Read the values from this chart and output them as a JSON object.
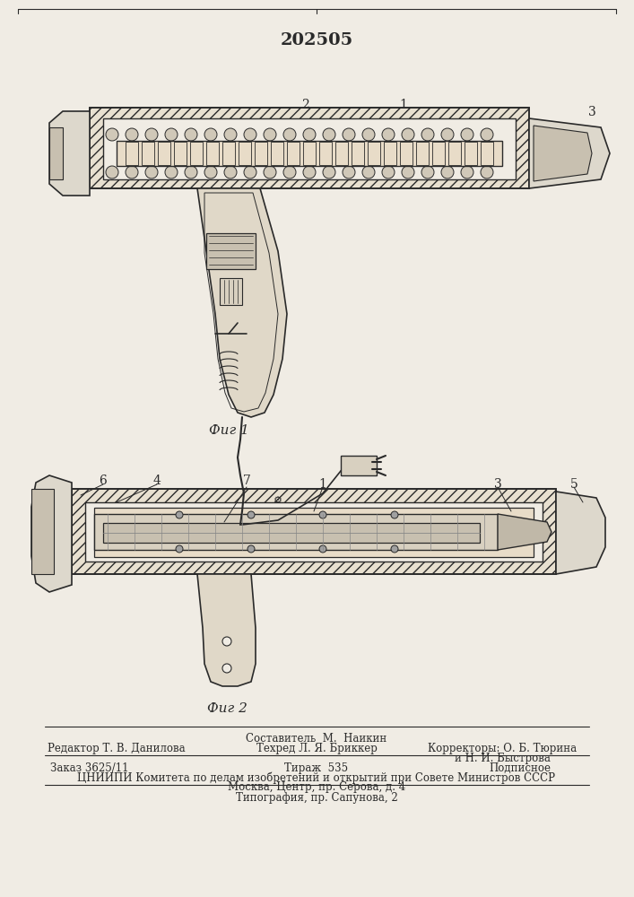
{
  "title": "202505",
  "fig1_label": "Фиг 1",
  "fig2_label": "Фиг 2",
  "footer_line1": "Составитель  М.  Наикин",
  "footer_line2_left": "Редактор Т. В. Данилова",
  "footer_line2_mid": "Техред Л. Я. Бриккер",
  "footer_line2_right": "Корректоры: О. Б. Тюрина",
  "footer_line2_right2": "и Н. И. Быстрова",
  "footer_line3_left": "Заказ 3625/11",
  "footer_line3_mid": "Тираж  535",
  "footer_line3_right": "Подписное",
  "footer_line4": "ЦНИИПИ Комитета по делам изобретений и открытий при Совете Министров СССР",
  "footer_line5": "Москва, Центр, пр. Серова, д. 4",
  "footer_line6": "Типография, пр. Сапунова, 2",
  "bg_color": "#f0ece4",
  "line_color": "#2a2a2a",
  "fig_width": 7.07,
  "fig_height": 10.0
}
